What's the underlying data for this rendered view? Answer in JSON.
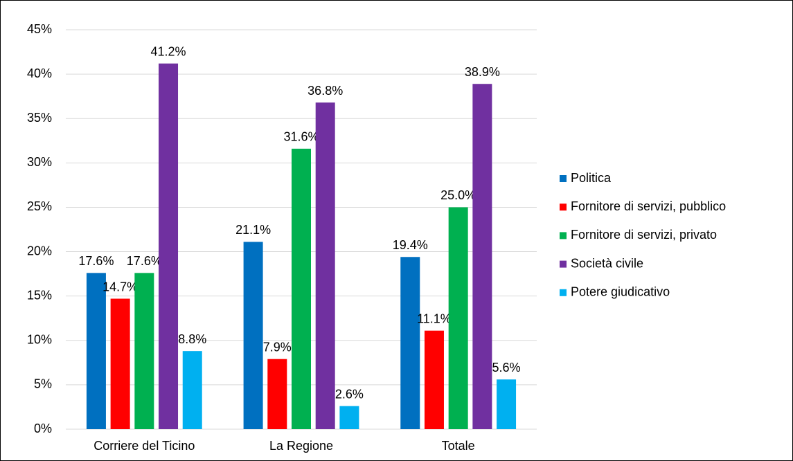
{
  "chart_data": {
    "type": "bar",
    "categories": [
      "Corriere del Ticino",
      "La Regione",
      "Totale"
    ],
    "series": [
      {
        "name": "Politica",
        "color": "#0070c0",
        "values": [
          17.6,
          21.1,
          19.4
        ],
        "value_labels": [
          "17.6%",
          "21.1%",
          "19.4%"
        ]
      },
      {
        "name": "Fornitore di servizi, pubblico",
        "color": "#ff0000",
        "values": [
          14.7,
          7.9,
          11.1
        ],
        "value_labels": [
          "14.7%",
          "7.9%",
          "11.1%"
        ]
      },
      {
        "name": "Fornitore di servizi, privato",
        "color": "#00b050",
        "values": [
          17.6,
          31.6,
          25.0
        ],
        "value_labels": [
          "17.6%",
          "31.6%",
          "25.0%"
        ]
      },
      {
        "name": "Società civile",
        "color": "#7030a0",
        "values": [
          41.2,
          36.8,
          38.9
        ],
        "value_labels": [
          "41.2%",
          "36.8%",
          "38.9%"
        ]
      },
      {
        "name": "Potere giudicativo",
        "color": "#00b0f0",
        "values": [
          8.8,
          2.6,
          5.6
        ],
        "value_labels": [
          "8.8%",
          "2.6%",
          "5.6%"
        ]
      }
    ],
    "ylim": [
      0,
      45
    ],
    "yticks": [
      {
        "value": 0,
        "label": "0%"
      },
      {
        "value": 5,
        "label": "5%"
      },
      {
        "value": 10,
        "label": "10%"
      },
      {
        "value": 15,
        "label": "15%"
      },
      {
        "value": 20,
        "label": "20%"
      },
      {
        "value": 25,
        "label": "25%"
      },
      {
        "value": 30,
        "label": "30%"
      },
      {
        "value": 35,
        "label": "35%"
      },
      {
        "value": 40,
        "label": "40%"
      },
      {
        "value": 45,
        "label": "45%"
      }
    ],
    "grid": true,
    "legend": "right"
  }
}
